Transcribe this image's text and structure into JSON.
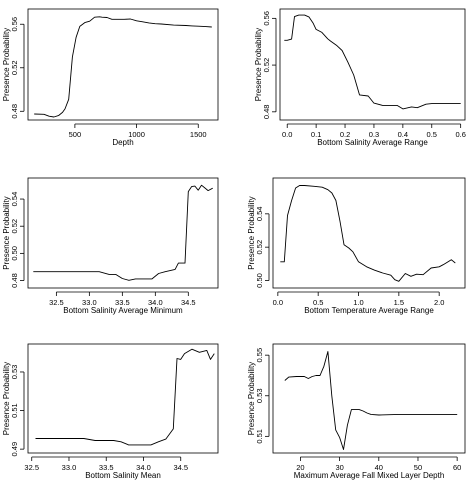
{
  "chart_data": [
    {
      "type": "line",
      "xlabel": "Depth",
      "ylabel": "Presence Probability",
      "xlim": [
        120,
        1660
      ],
      "ylim": [
        0.472,
        0.574
      ],
      "xticks": [
        "500",
        "1000",
        "1500"
      ],
      "xtick_values": [
        500,
        1000,
        1500
      ],
      "yticks": [
        "0.48",
        "0.52",
        "0.56"
      ],
      "ytick_values": [
        0.48,
        0.52,
        0.56
      ],
      "grid": false,
      "series": [
        {
          "x": [
            170,
            250,
            290,
            330,
            370,
            400,
            420,
            450,
            480,
            510,
            540,
            580,
            620,
            660,
            700,
            720,
            760,
            800,
            860,
            900,
            950,
            1000,
            1050,
            1100,
            1150,
            1200,
            1300,
            1400,
            1450,
            1500,
            1560,
            1610
          ],
          "y": [
            0.4775,
            0.4772,
            0.4755,
            0.4748,
            0.4762,
            0.479,
            0.4822,
            0.491,
            0.53,
            0.548,
            0.558,
            0.5615,
            0.5628,
            0.5665,
            0.5668,
            0.5665,
            0.5662,
            0.5645,
            0.5645,
            0.5645,
            0.5648,
            0.5632,
            0.5622,
            0.5612,
            0.5605,
            0.5602,
            0.5592,
            0.5588,
            0.5585,
            0.5582,
            0.5578,
            0.5575
          ]
        }
      ]
    },
    {
      "type": "line",
      "xlabel": "Bottom Salinity Average Range",
      "ylabel": "Presence Probability",
      "xlim": [
        -0.025,
        0.615
      ],
      "ylim": [
        0.473,
        0.568
      ],
      "xticks": [
        "0.0",
        "0.1",
        "0.2",
        "0.3",
        "0.4",
        "0.5",
        "0.6"
      ],
      "xtick_values": [
        0,
        0.1,
        0.2,
        0.3,
        0.4,
        0.5,
        0.6
      ],
      "yticks": [
        "0.48",
        "0.52",
        "0.56"
      ],
      "ytick_values": [
        0.48,
        0.52,
        0.56
      ],
      "grid": false,
      "series": [
        {
          "x": [
            -0.01,
            0.0,
            0.015,
            0.025,
            0.04,
            0.06,
            0.075,
            0.09,
            0.1,
            0.12,
            0.14,
            0.15,
            0.17,
            0.19,
            0.21,
            0.23,
            0.25,
            0.28,
            0.3,
            0.33,
            0.36,
            0.38,
            0.4,
            0.43,
            0.45,
            0.48,
            0.5,
            0.55,
            0.6
          ],
          "y": [
            0.5412,
            0.5412,
            0.5422,
            0.5615,
            0.5628,
            0.5628,
            0.5612,
            0.5558,
            0.5505,
            0.548,
            0.5425,
            0.5405,
            0.537,
            0.5325,
            0.5225,
            0.5115,
            0.4945,
            0.4935,
            0.4875,
            0.4855,
            0.4855,
            0.4855,
            0.4825,
            0.4842,
            0.4835,
            0.4865,
            0.487,
            0.487,
            0.487
          ]
        }
      ]
    },
    {
      "type": "line",
      "xlabel": "Bottom Salinity Average Minimum",
      "ylabel": "Presence Probability",
      "xlim": [
        32.07,
        34.95
      ],
      "ylim": [
        0.4745,
        0.5555
      ],
      "xticks": [
        "32.5",
        "33.0",
        "33.5",
        "34.0",
        "34.5"
      ],
      "xtick_values": [
        32.5,
        33.0,
        33.5,
        34.0,
        34.5
      ],
      "yticks": [
        "0.48",
        "0.50",
        "0.52",
        "0.54"
      ],
      "ytick_values": [
        0.48,
        0.5,
        0.52,
        0.54
      ],
      "grid": false,
      "series": [
        {
          "x": [
            32.15,
            32.6,
            33.0,
            33.15,
            33.3,
            33.4,
            33.5,
            33.6,
            33.7,
            33.8,
            33.95,
            34.05,
            34.15,
            34.3,
            34.35,
            34.45,
            34.5,
            34.55,
            34.6,
            34.65,
            34.7,
            34.75,
            34.8,
            34.87
          ],
          "y": [
            0.4865,
            0.4865,
            0.4865,
            0.4865,
            0.4845,
            0.4845,
            0.4815,
            0.4802,
            0.4812,
            0.4812,
            0.4812,
            0.4852,
            0.4865,
            0.4882,
            0.4928,
            0.4928,
            0.5455,
            0.5492,
            0.5495,
            0.5465,
            0.5502,
            0.5482,
            0.5462,
            0.548
          ]
        }
      ]
    },
    {
      "type": "line",
      "xlabel": "Bottom Temperature Average Range",
      "ylabel": "Presence Probability",
      "xlim": [
        -0.06,
        2.32
      ],
      "ylim": [
        0.4955,
        0.5615
      ],
      "xticks": [
        "0.0",
        "0.5",
        "1.0",
        "1.5",
        "2.0"
      ],
      "xtick_values": [
        0,
        0.5,
        1.0,
        1.5,
        2.0
      ],
      "yticks": [
        "0.50",
        "0.52",
        "0.54"
      ],
      "ytick_values": [
        0.5,
        0.52,
        0.54
      ],
      "grid": false,
      "series": [
        {
          "x": [
            0.03,
            0.08,
            0.12,
            0.17,
            0.22,
            0.27,
            0.33,
            0.45,
            0.55,
            0.62,
            0.67,
            0.72,
            0.77,
            0.82,
            0.88,
            0.93,
            1.0,
            1.1,
            1.2,
            1.3,
            1.4,
            1.45,
            1.5,
            1.58,
            1.65,
            1.72,
            1.8,
            1.9,
            2.0,
            2.05,
            2.1,
            2.15,
            2.2
          ],
          "y": [
            0.5112,
            0.5112,
            0.539,
            0.548,
            0.5555,
            0.557,
            0.557,
            0.5565,
            0.556,
            0.5545,
            0.5525,
            0.548,
            0.5355,
            0.5215,
            0.5195,
            0.5172,
            0.5112,
            0.5082,
            0.5062,
            0.5045,
            0.5032,
            0.5005,
            0.4995,
            0.5042,
            0.5025,
            0.5038,
            0.5035,
            0.5075,
            0.5082,
            0.5095,
            0.511,
            0.5125,
            0.5105
          ]
        }
      ]
    },
    {
      "type": "line",
      "xlabel": "Bottom Salinity Mean",
      "ylabel": "Presence Probability",
      "xlim": [
        32.45,
        35.0
      ],
      "ylim": [
        0.488,
        0.5445
      ],
      "xticks": [
        "32.5",
        "33.0",
        "33.5",
        "34.0",
        "34.5"
      ],
      "xtick_values": [
        32.5,
        33.0,
        33.5,
        34.0,
        34.5
      ],
      "yticks": [
        "0.49",
        "0.51",
        "0.53"
      ],
      "ytick_values": [
        0.49,
        0.51,
        0.53
      ],
      "grid": false,
      "series": [
        {
          "x": [
            32.55,
            32.8,
            33.0,
            33.2,
            33.35,
            33.45,
            33.6,
            33.7,
            33.8,
            33.95,
            34.1,
            34.2,
            34.3,
            34.4,
            34.45,
            34.5,
            34.55,
            34.65,
            34.75,
            34.85,
            34.9,
            34.95
          ],
          "y": [
            0.4955,
            0.4955,
            0.4955,
            0.4955,
            0.4945,
            0.4945,
            0.4945,
            0.4938,
            0.4922,
            0.4922,
            0.4922,
            0.4938,
            0.4952,
            0.5005,
            0.537,
            0.5365,
            0.5395,
            0.5418,
            0.5402,
            0.5412,
            0.5365,
            0.5395
          ]
        }
      ]
    },
    {
      "type": "line",
      "xlabel": "Maximum Average Fall Mixed Layer Depth",
      "ylabel": "Presence Probability",
      "xlim": [
        13,
        62
      ],
      "ylim": [
        0.5018,
        0.5555
      ],
      "xticks": [
        "20",
        "30",
        "40",
        "50",
        "60"
      ],
      "xtick_values": [
        20,
        30,
        40,
        50,
        60
      ],
      "yticks": [
        "0.51",
        "0.53",
        "0.55"
      ],
      "ytick_values": [
        0.51,
        0.53,
        0.55
      ],
      "grid": false,
      "series": [
        {
          "x": [
            16,
            17,
            19,
            21,
            22,
            23,
            24,
            25,
            26,
            27,
            28,
            29,
            30,
            31,
            32,
            33,
            35,
            36,
            37,
            38,
            40,
            45,
            50,
            55,
            60
          ],
          "y": [
            0.5375,
            0.5392,
            0.5395,
            0.5395,
            0.5385,
            0.5395,
            0.54,
            0.54,
            0.5445,
            0.5518,
            0.53,
            0.5132,
            0.5095,
            0.5035,
            0.5155,
            0.5232,
            0.5232,
            0.5225,
            0.5215,
            0.5208,
            0.5205,
            0.5208,
            0.5208,
            0.5208,
            0.5208
          ]
        }
      ]
    }
  ]
}
